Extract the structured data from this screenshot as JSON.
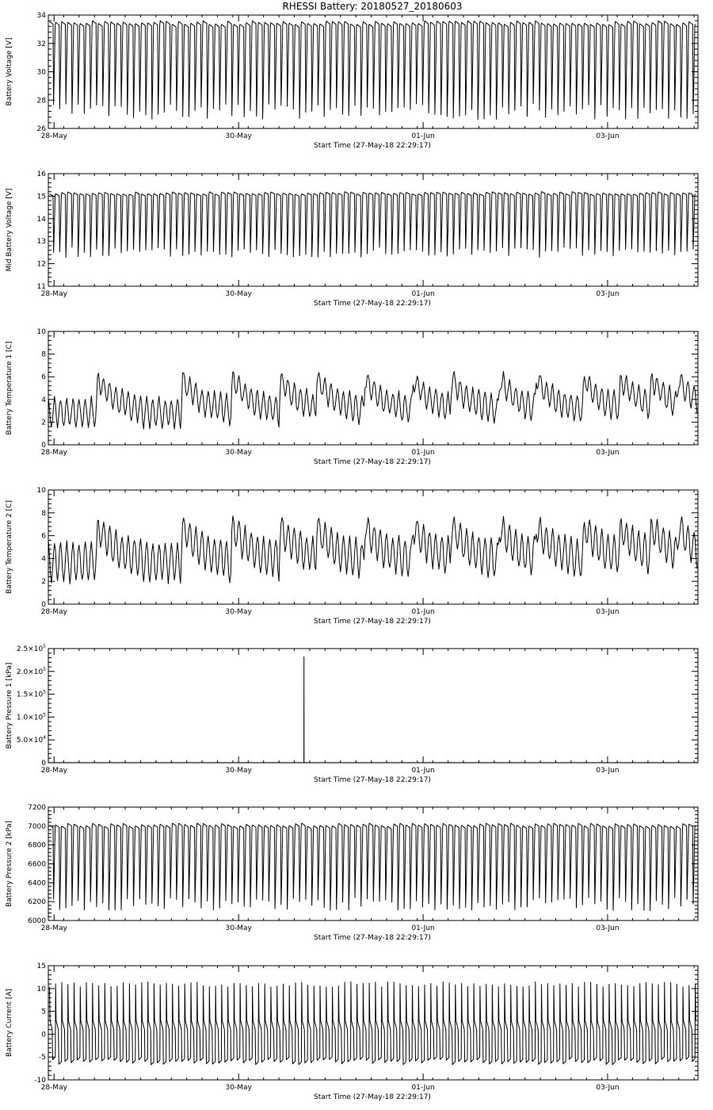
{
  "figure": {
    "title": "RHESSI Battery: 20180527_20180603"
  },
  "chart_data": [
    {
      "type": "line",
      "ylabel": "Battery Voltage [V]",
      "xlabel": "Start Time (27-May-18 22:29:17)",
      "x_range_hours": [
        0,
        169
      ],
      "x_ticks": [
        {
          "hours": 1.5,
          "label": "28-May"
        },
        {
          "hours": 49.5,
          "label": "30-May"
        },
        {
          "hours": 97.5,
          "label": "01-Jun"
        },
        {
          "hours": 145.5,
          "label": "03-Jun"
        }
      ],
      "ylim": [
        26,
        34
      ],
      "y_ticks": [
        {
          "v": 26,
          "label": "26"
        },
        {
          "v": 28,
          "label": "28"
        },
        {
          "v": 30,
          "label": "30"
        },
        {
          "v": 32,
          "label": "32"
        },
        {
          "v": 34,
          "label": "34"
        }
      ],
      "series": [
        {
          "kind": "orbit",
          "period_hours": 1.6,
          "phase_hours": 0.3,
          "high": 33.6,
          "low": 27.2,
          "shape": "sharp-drop",
          "variation": 0.7,
          "seed": 3
        }
      ]
    },
    {
      "type": "line",
      "ylabel": "Mid Battery Voltage [V]",
      "xlabel": "Start Time (27-May-18 22:29:17)",
      "x_range_hours": [
        0,
        169
      ],
      "x_ticks": [
        {
          "hours": 1.5,
          "label": "28-May"
        },
        {
          "hours": 49.5,
          "label": "30-May"
        },
        {
          "hours": 97.5,
          "label": "01-Jun"
        },
        {
          "hours": 145.5,
          "label": "03-Jun"
        }
      ],
      "ylim": [
        11,
        16
      ],
      "y_ticks": [
        {
          "v": 11,
          "label": "11"
        },
        {
          "v": 12,
          "label": "12"
        },
        {
          "v": 13,
          "label": "13"
        },
        {
          "v": 14,
          "label": "14"
        },
        {
          "v": 15,
          "label": "15"
        },
        {
          "v": 16,
          "label": "16"
        }
      ],
      "series": [
        {
          "kind": "orbit",
          "period_hours": 1.6,
          "phase_hours": 0.3,
          "high": 15.2,
          "low": 12.5,
          "shape": "sharp-drop",
          "variation": 0.3,
          "seed": 5
        }
      ]
    },
    {
      "type": "line",
      "ylabel": "Battery Temperature 1 [C]",
      "xlabel": "Start Time (27-May-18 22:29:17)",
      "x_range_hours": [
        0,
        169
      ],
      "x_ticks": [
        {
          "hours": 1.5,
          "label": "28-May"
        },
        {
          "hours": 49.5,
          "label": "30-May"
        },
        {
          "hours": 97.5,
          "label": "01-Jun"
        },
        {
          "hours": 145.5,
          "label": "03-Jun"
        }
      ],
      "ylim": [
        0,
        10
      ],
      "y_ticks": [
        {
          "v": 0,
          "label": "0"
        },
        {
          "v": 2,
          "label": "2"
        },
        {
          "v": 4,
          "label": "4"
        },
        {
          "v": 6,
          "label": "6"
        },
        {
          "v": 8,
          "label": "8"
        },
        {
          "v": 10,
          "label": "10"
        }
      ],
      "series": [
        {
          "kind": "thermal",
          "period_hours": 1.6,
          "base": 1.6,
          "amp": 2.5,
          "event_hours": [
            12.5,
            34.5,
            47.5,
            60.0,
            69.5,
            82.0,
            94.5,
            104.5,
            117.0,
            126.5,
            139.0,
            148.5,
            156.5,
            163.5
          ],
          "event_peak": 7.8,
          "event_decay_hours": 5.0,
          "seed": 7
        }
      ]
    },
    {
      "type": "line",
      "ylabel": "Battery Temperature 2 [C]",
      "xlabel": "Start Time (27-May-18 22:29:17)",
      "x_range_hours": [
        0,
        169
      ],
      "x_ticks": [
        {
          "hours": 1.5,
          "label": "28-May"
        },
        {
          "hours": 49.5,
          "label": "30-May"
        },
        {
          "hours": 97.5,
          "label": "01-Jun"
        },
        {
          "hours": 145.5,
          "label": "03-Jun"
        }
      ],
      "ylim": [
        0,
        10
      ],
      "y_ticks": [
        {
          "v": 0,
          "label": "0"
        },
        {
          "v": 2,
          "label": "2"
        },
        {
          "v": 4,
          "label": "4"
        },
        {
          "v": 6,
          "label": "6"
        },
        {
          "v": 8,
          "label": "8"
        },
        {
          "v": 10,
          "label": "10"
        }
      ],
      "series": [
        {
          "kind": "thermal",
          "period_hours": 1.6,
          "base": 2.0,
          "amp": 3.4,
          "event_hours": [
            12.5,
            34.5,
            47.5,
            60.0,
            69.5,
            82.0,
            94.5,
            104.5,
            117.0,
            126.5,
            139.0,
            148.5,
            156.5,
            163.5
          ],
          "event_peak": 9.3,
          "event_decay_hours": 5.0,
          "seed": 11
        }
      ]
    },
    {
      "type": "line",
      "ylabel": "Battery Pressure 1 [kPa]",
      "xlabel": "Start Time (27-May-18 22:29:17)",
      "x_range_hours": [
        0,
        169
      ],
      "x_ticks": [
        {
          "hours": 1.5,
          "label": "28-May"
        },
        {
          "hours": 49.5,
          "label": "30-May"
        },
        {
          "hours": 97.5,
          "label": "01-Jun"
        },
        {
          "hours": 145.5,
          "label": "03-Jun"
        }
      ],
      "ylim": [
        0,
        250000
      ],
      "y_ticks": [
        {
          "v": 0,
          "label": "0"
        },
        {
          "v": 50000,
          "label": "5.0×10",
          "exp": "4"
        },
        {
          "v": 100000,
          "label": "1.0×10",
          "exp": "5"
        },
        {
          "v": 150000,
          "label": "1.5×10",
          "exp": "5"
        },
        {
          "v": 200000,
          "label": "2.0×10",
          "exp": "5"
        },
        {
          "v": 250000,
          "label": "2.5×10",
          "exp": "5"
        }
      ],
      "series": [
        {
          "kind": "spike",
          "baseline": 200,
          "spike_hours": 66.5,
          "spike_value": 232000
        }
      ]
    },
    {
      "type": "line",
      "ylabel": "Battery Pressure 2 [kPa]",
      "xlabel": "Start Time (27-May-18 22:29:17)",
      "x_range_hours": [
        0,
        169
      ],
      "x_ticks": [
        {
          "hours": 1.5,
          "label": "28-May"
        },
        {
          "hours": 49.5,
          "label": "30-May"
        },
        {
          "hours": 97.5,
          "label": "01-Jun"
        },
        {
          "hours": 145.5,
          "label": "03-Jun"
        }
      ],
      "ylim": [
        6000,
        7200
      ],
      "y_ticks": [
        {
          "v": 6000,
          "label": "6000"
        },
        {
          "v": 6200,
          "label": "6200"
        },
        {
          "v": 6400,
          "label": "6400"
        },
        {
          "v": 6600,
          "label": "6600"
        },
        {
          "v": 6800,
          "label": "6800"
        },
        {
          "v": 7000,
          "label": "7000"
        },
        {
          "v": 7200,
          "label": "7200"
        }
      ],
      "series": [
        {
          "kind": "orbit",
          "period_hours": 1.6,
          "phase_hours": 0.3,
          "high": 7030,
          "low": 6170,
          "shape": "sharp-drop",
          "variation": 90,
          "seed": 13
        }
      ]
    },
    {
      "type": "line",
      "ylabel": "Battery Current [A]",
      "xlabel": "Start Time (27-May-18 22:29:17)",
      "x_range_hours": [
        0,
        169
      ],
      "x_ticks": [
        {
          "hours": 1.5,
          "label": "28-May"
        },
        {
          "hours": 49.5,
          "label": "30-May"
        },
        {
          "hours": 97.5,
          "label": "01-Jun"
        },
        {
          "hours": 145.5,
          "label": "03-Jun"
        }
      ],
      "ylim": [
        -10,
        15
      ],
      "y_ticks": [
        {
          "v": -10,
          "label": "-10"
        },
        {
          "v": -5,
          "label": "-5"
        },
        {
          "v": 0,
          "label": "0"
        },
        {
          "v": 5,
          "label": "5"
        },
        {
          "v": 10,
          "label": "10"
        },
        {
          "v": 15,
          "label": "15"
        }
      ],
      "series": [
        {
          "kind": "current",
          "period_hours": 1.6,
          "phase_hours": 0.3,
          "peak": 11.5,
          "plateau": 1.0,
          "low": -5.5,
          "variation": 1.2,
          "seed": 17
        }
      ]
    }
  ]
}
